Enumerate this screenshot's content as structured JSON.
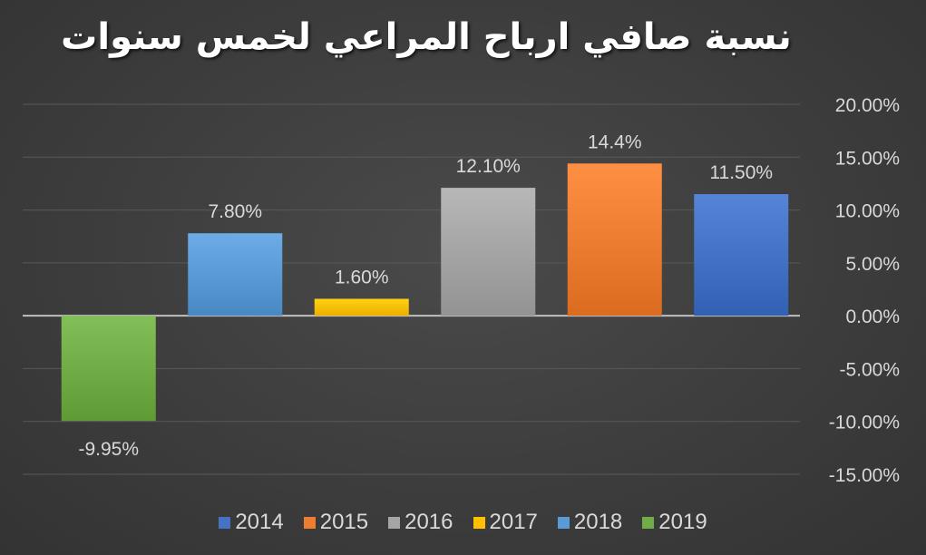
{
  "chart_data": {
    "type": "bar",
    "title": "نسبة صافي ارباح المراعي لخمس  سنوات",
    "xlabel": "",
    "ylabel": "",
    "ylim": [
      -15,
      20
    ],
    "y_ticks": [
      "20.00%",
      "15.00%",
      "10.00%",
      "5.00%",
      "0.00%",
      "-5.00%",
      "-10.00%",
      "-15.00%"
    ],
    "y_tick_values": [
      20,
      15,
      10,
      5,
      0,
      -5,
      -10,
      -15
    ],
    "y_axis_position": "right",
    "grid": true,
    "legend_position": "bottom",
    "categories": [
      "2019",
      "2018",
      "2017",
      "2016",
      "2015",
      "2014"
    ],
    "values": [
      -9.95,
      7.8,
      1.6,
      12.1,
      14.4,
      11.5
    ],
    "data_labels": [
      "-9.95%",
      "7.80%",
      "1.60%",
      "12.10%",
      "14.4%",
      "11.50%"
    ],
    "colors": [
      "#70ad47",
      "#5b9bd5",
      "#ffc000",
      "#a5a5a5",
      "#ed7d31",
      "#4472c4"
    ],
    "legend": [
      {
        "label": "2014",
        "color": "#4472c4"
      },
      {
        "label": "2015",
        "color": "#ed7d31"
      },
      {
        "label": "2016",
        "color": "#a5a5a5"
      },
      {
        "label": "2017",
        "color": "#ffc000"
      },
      {
        "label": "2018",
        "color": "#5b9bd5"
      },
      {
        "label": "2019",
        "color": "#70ad47"
      }
    ]
  }
}
